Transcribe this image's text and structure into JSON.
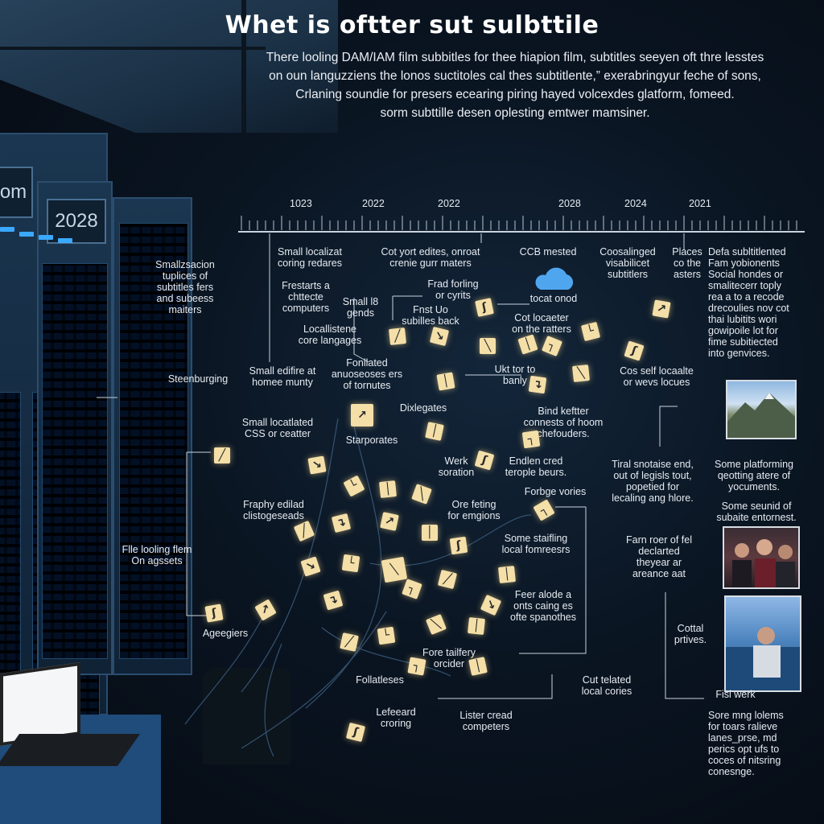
{
  "title": "Whet is oftter sut sulbttile",
  "intro": [
    "There looling DAM/IAM film subbitles for thee hiapion film, subtitles seeyen oft thre lesstes",
    "on oun languzziens the lonos suctitoles cal thes subtitlente,” exerabringyur feche of sons,",
    "Crlaning soundie for presers ecearing piring hayed volcexdes glatform, fomeed.",
    "sorm subttille desen oplesting emtwer mamsiner."
  ],
  "rack_labels": [
    "om",
    "2028"
  ],
  "timeline": {
    "years": [
      "1023",
      "2022",
      "2022",
      "2028",
      "2024",
      "2021"
    ]
  },
  "labels": {
    "l01": "Smallzsacion\ntuplices of\nsubtitles fers\nand subeess\nmaiters",
    "l02": "Small localizat\ncoring redares",
    "l03": "Frestarts a\nchttecte\ncomputers",
    "l04": "Small l8\ngends",
    "l05": "Locallistene\ncore langages",
    "l06": "Steenburging",
    "l07": "Small edifire at\nhomee munty",
    "l08": "Fonllated\nanuoseoses ers\nof tornutes",
    "l09": "Cot yort edites, onroat\ncrenie gurr maters",
    "l10": "Frad forling\nor cyrits",
    "l11": "Fnst Uo\nsubilles back",
    "l12": "CCB mested",
    "l13": "tocat onod",
    "l14": "Cot locaeter\non the ratters",
    "l15": "Coosalinged\nvisabilicet\nsubtitlers",
    "l16": "Places\nco the\nasters",
    "l17": "Defa subltitlented\nFam yobionents\nSocial hondes or\nsmalitecerr toply\nrea a to a recode\ndrecoulies nov cot\nthai lubitits wori\ngowipoile lot for\nfime subitiected\ninto genvices.",
    "l18": "Ukt tor to\nbanly",
    "l19": "Cos self locaalte\nor wevs locues",
    "l20": "Small locatlated\nCSS or ceatter",
    "l21": "Dixlegates",
    "l22": "Starporates",
    "l23": "Bind keftter\nconnests of hoom\nchefouders.",
    "l24": "Werk\nsoration",
    "l25": "Endlen cred\nterople beurs.",
    "l26": "Tiral snotaise end,\nout of legisls tout,\npopetied for\nlecaling ang hlore.",
    "l27": "Some platforming\nqeotting atere of\nyocuments.",
    "l28": "Some seunid of\nsubaite entornest.",
    "l29": "Fraphy edilad\nclistogeseads",
    "l30": "Forbge vories",
    "l31": "Ore feting\nfor emgions",
    "l32": "Some staifling\nlocal fomreesrs",
    "l33": "Farn roer of fel\ndeclarted\ntheyear ar\nareance aat",
    "l34": "Flle looling flem\nOn agssets",
    "l35": "Feer alode a\nonts caing es\nofte spanothes",
    "l36": "Ageegiers",
    "l37": "Cottal\nprtives.",
    "l38": "Fore tailfery\norcider",
    "l39": "Follatleses",
    "l40": "Cut telated\nlocal cories",
    "l41": "Fisl werk",
    "l42": "Lefeeard\ncroring",
    "l43": "Lister cread\ncompeters",
    "l44": "Sore mng lolems\nfor toars ralieve\nlanes_prse, md\nperics opt ufs to\ncoces of nitsring\nconesnge."
  },
  "notes": [
    "ʃ",
    "↗",
    "╱",
    "↘",
    "╲",
    "│",
    "┐",
    "└",
    "ʃ",
    "│",
    "↴",
    "╲",
    "↗",
    "│",
    "┐",
    "╱",
    "↘",
    "ʃ",
    "└",
    "│",
    "╲",
    "┐",
    "╱",
    "↴",
    "↗",
    "│",
    "ʃ",
    "↘",
    "└",
    "╲",
    "╱",
    "│",
    "┐",
    "↴",
    "↗",
    "ʃ",
    "↘",
    "╲",
    "│",
    "╱",
    "└",
    "┐",
    "│",
    "ʃ",
    "↘",
    "↗",
    "╲"
  ]
}
